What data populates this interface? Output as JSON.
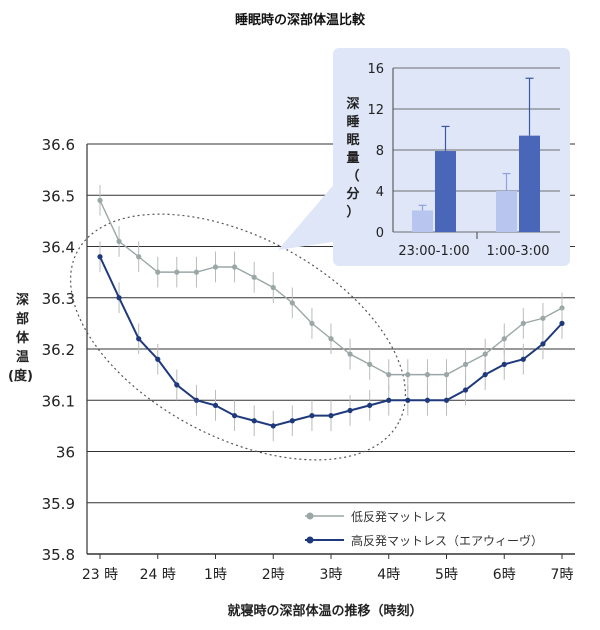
{
  "title": "睡眠時の深部体温比較",
  "colors": {
    "low": "#9aa7a6",
    "high": "#1f3a7c",
    "inset_bg": "#dfe6f7",
    "bar_light": "#b7c5ef",
    "bar_dark": "#4a66b8",
    "grid": "#333333"
  },
  "chart_data": [
    {
      "type": "line",
      "title": "",
      "ylabel": "深部体温(度)",
      "xlabel": "就寝時の深部体温の推移（時刻）",
      "ylim": [
        35.8,
        36.6
      ],
      "yticks": [
        "36.6",
        "36.5",
        "36.4",
        "36.3",
        "36.2",
        "36.1",
        "36",
        "35.9",
        "35.8"
      ],
      "ytick_values": [
        36.6,
        36.5,
        36.4,
        36.3,
        36.2,
        36.1,
        36.0,
        35.9,
        35.8
      ],
      "xlim": [
        23,
        31
      ],
      "xtick_values": [
        23,
        24,
        25,
        26,
        27,
        28,
        29,
        30,
        31
      ],
      "xticks": [
        "23 時",
        "24 時",
        "1時",
        "2時",
        "3時",
        "4時",
        "5時",
        "6時",
        "7時"
      ],
      "legend_position": "bottom-right",
      "series": [
        {
          "name": "低反発マットレス",
          "color": "#9aa7a6",
          "x": [
            23.0,
            23.33,
            23.67,
            24.0,
            24.33,
            24.67,
            25.0,
            25.33,
            25.67,
            26.0,
            26.33,
            26.67,
            27.0,
            27.33,
            27.67,
            28.0,
            28.33,
            28.67,
            29.0,
            29.33,
            29.67,
            30.0,
            30.33,
            30.67,
            31.0
          ],
          "y": [
            36.49,
            36.41,
            36.38,
            36.35,
            36.35,
            36.35,
            36.36,
            36.36,
            36.34,
            36.32,
            36.29,
            36.25,
            36.22,
            36.19,
            36.17,
            36.15,
            36.15,
            36.15,
            36.15,
            36.17,
            36.19,
            36.22,
            36.25,
            36.26,
            36.28
          ],
          "err": [
            0.03,
            0.03,
            0.03,
            0.03,
            0.03,
            0.03,
            0.03,
            0.03,
            0.03,
            0.03,
            0.03,
            0.03,
            0.03,
            0.03,
            0.03,
            0.03,
            0.03,
            0.03,
            0.03,
            0.03,
            0.03,
            0.03,
            0.03,
            0.03,
            0.03
          ]
        },
        {
          "name": "高反発マットレス（エアウィーヴ）",
          "color": "#1f3a7c",
          "x": [
            23.0,
            23.33,
            23.67,
            24.0,
            24.33,
            24.67,
            25.0,
            25.33,
            25.67,
            26.0,
            26.33,
            26.67,
            27.0,
            27.33,
            27.67,
            28.0,
            28.33,
            28.67,
            29.0,
            29.33,
            29.67,
            30.0,
            30.33,
            30.67,
            31.0
          ],
          "y": [
            36.38,
            36.3,
            36.22,
            36.18,
            36.13,
            36.1,
            36.09,
            36.07,
            36.06,
            36.05,
            36.06,
            36.07,
            36.07,
            36.08,
            36.09,
            36.1,
            36.1,
            36.1,
            36.1,
            36.12,
            36.15,
            36.17,
            36.18,
            36.21,
            36.25
          ],
          "err": [
            0.03,
            0.03,
            0.03,
            0.03,
            0.03,
            0.03,
            0.03,
            0.03,
            0.03,
            0.03,
            0.03,
            0.03,
            0.03,
            0.03,
            0.03,
            0.03,
            0.03,
            0.03,
            0.03,
            0.03,
            0.03,
            0.03,
            0.03,
            0.03,
            0.03
          ]
        }
      ]
    },
    {
      "type": "bar",
      "title": "",
      "ylabel": "深睡眠量（分）",
      "ylim": [
        0,
        16
      ],
      "yticks": [
        "16",
        "12",
        "8",
        "4",
        "0"
      ],
      "ytick_values": [
        16,
        12,
        8,
        4,
        0
      ],
      "categories": [
        "23:00-1:00",
        "1:00-3:00"
      ],
      "series": [
        {
          "name": "低反発マットレス",
          "color": "#b7c5ef",
          "values": [
            2.1,
            4.0
          ],
          "err": [
            0.5,
            1.7
          ]
        },
        {
          "name": "高反発マットレス（エアウィーヴ）",
          "color": "#4a66b8",
          "values": [
            7.9,
            9.4
          ],
          "err": [
            2.4,
            5.6
          ]
        }
      ]
    }
  ]
}
